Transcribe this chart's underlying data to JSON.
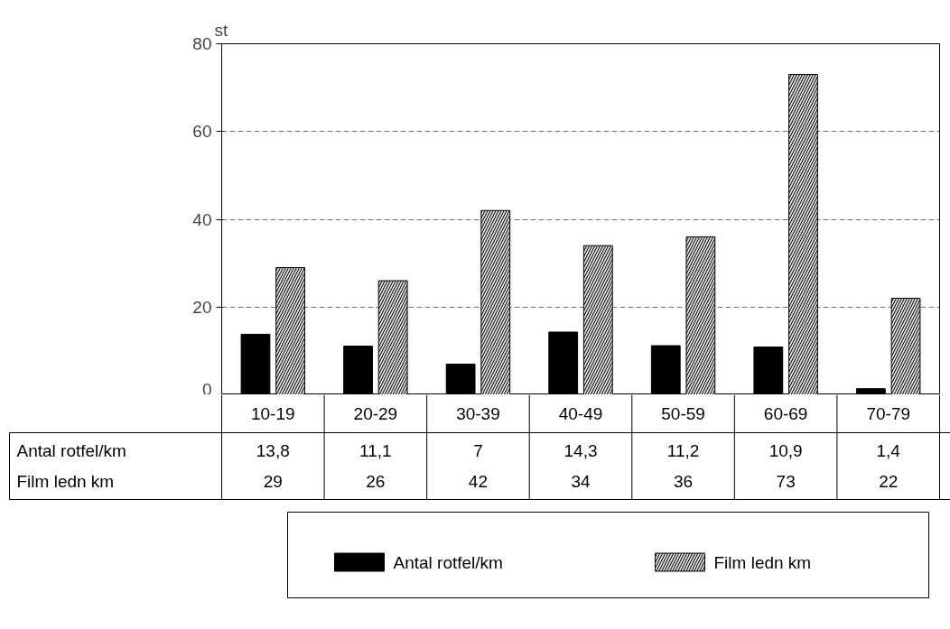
{
  "chart_data": {
    "type": "bar",
    "ylabel": "st",
    "categories": [
      "10-19",
      "20-29",
      "30-39",
      "40-49",
      "50-59",
      "60-69",
      "70-79"
    ],
    "series": [
      {
        "name": "Antal rotfel/km",
        "color": "#000000",
        "values": [
          13.8,
          11.1,
          7,
          14.3,
          11.2,
          10.9,
          1.4
        ],
        "value_labels": [
          "13,8",
          "11,1",
          "7",
          "14,3",
          "11,2",
          "10,9",
          "1,4"
        ]
      },
      {
        "name": "Film ledn km",
        "color": "#d8d8d8",
        "values": [
          29,
          26,
          42,
          34,
          36,
          73,
          22
        ],
        "value_labels": [
          "29",
          "26",
          "42",
          "34",
          "36",
          "73",
          "22"
        ]
      }
    ],
    "ylim": [
      0,
      80
    ],
    "yticks": [
      0,
      20,
      40,
      60,
      80
    ],
    "grid": "y",
    "legend": "bottom"
  }
}
